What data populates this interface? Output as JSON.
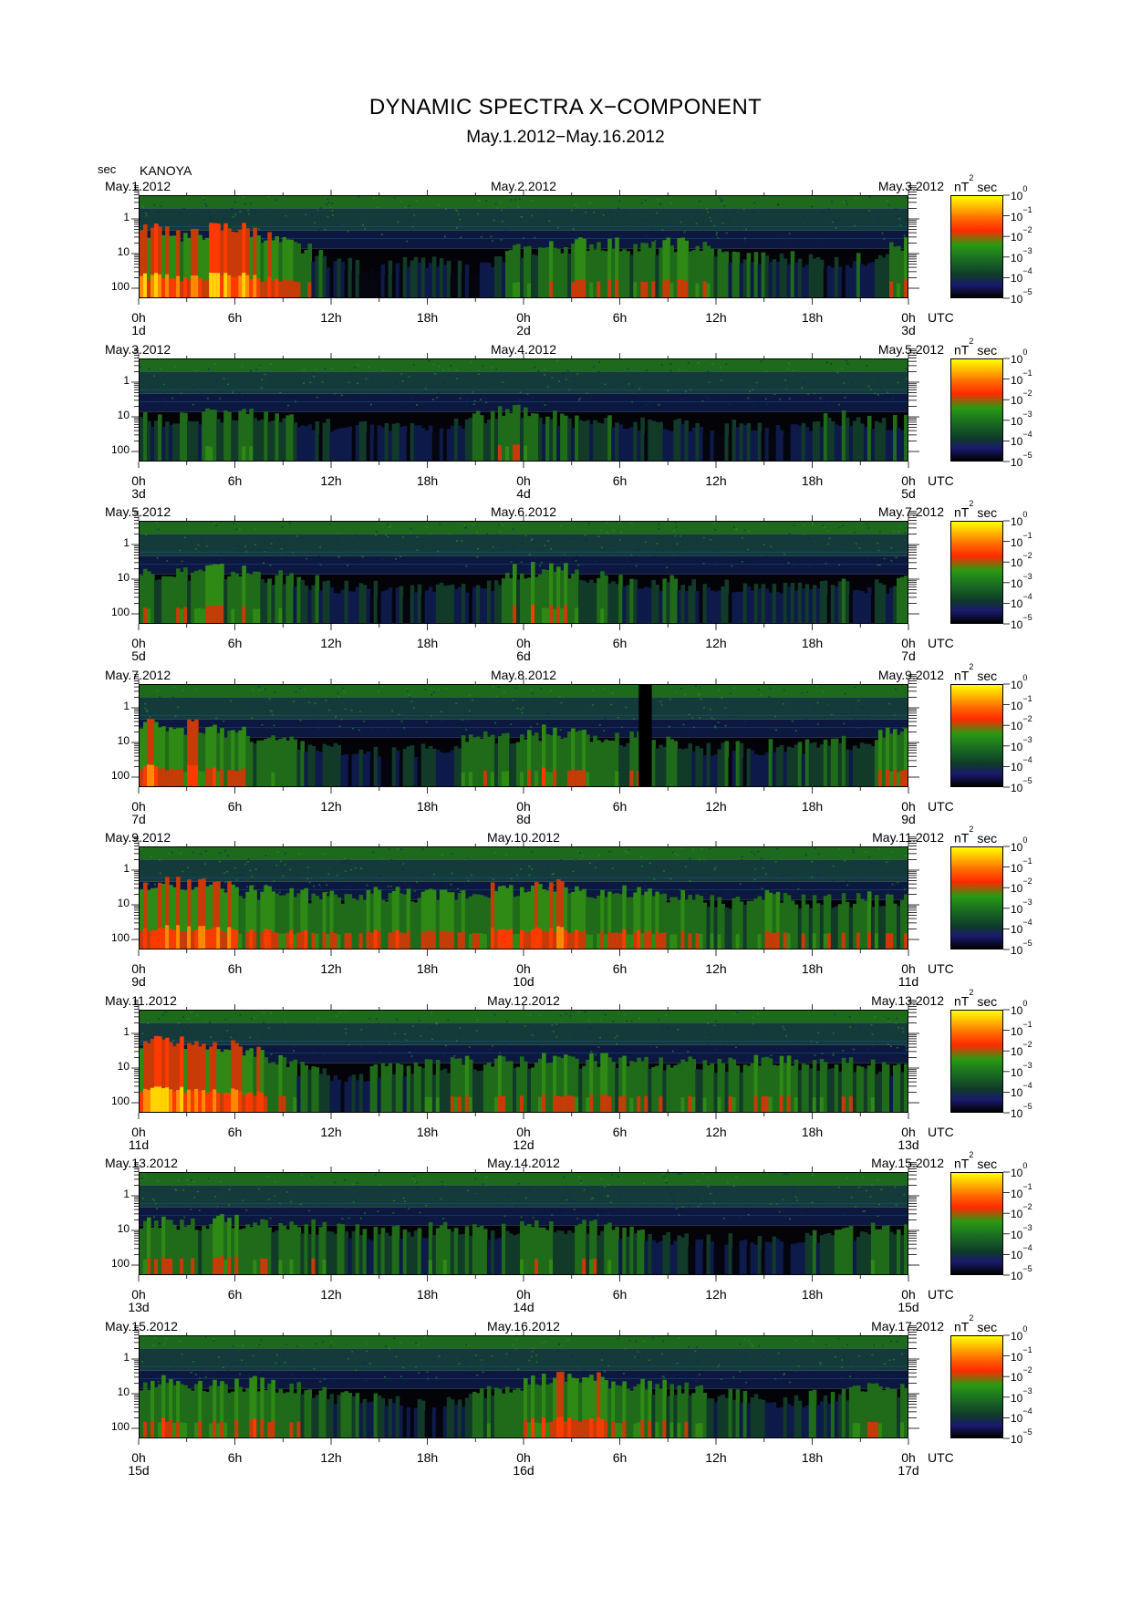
{
  "title": "DYNAMIC SPECTRA X−COMPONENT",
  "subtitle": "May.1.2012−May.16.2012",
  "y_unit": "sec",
  "station": "KANOYA",
  "colorbar": {
    "unit_base": "nT",
    "unit_exp": "2",
    "unit_tail": "sec",
    "base": "10",
    "exponents": [
      "0",
      "−1",
      "−2",
      "−3",
      "−4",
      "−5"
    ]
  },
  "time_zone": "UTC",
  "x_ticks": [
    "0h",
    "6h",
    "12h",
    "18h",
    "0h",
    "6h",
    "12h",
    "18h",
    "0h"
  ],
  "y_ticks": [
    "1",
    "10",
    "100"
  ],
  "chart_data": {
    "type": "heatmap",
    "title": "DYNAMIC SPECTRA X−COMPONENT",
    "subtitle": "May.1.2012−May.16.2012",
    "ylabel": "sec",
    "y_scale": "log",
    "y_ticks": [
      1,
      10,
      100
    ],
    "x_ticks": [
      "0h",
      "6h",
      "12h",
      "18h",
      "0h",
      "6h",
      "12h",
      "18h",
      "0h"
    ],
    "colorbar_range_log10": [
      -5,
      0
    ],
    "panels": [
      {
        "start": "May.1.2012",
        "mid": "May.2.2012",
        "end": "May.3.2012",
        "days": [
          "1d",
          "2d",
          "3d"
        ],
        "activity": [
          0.8,
          0.9,
          0.7,
          0.85,
          0.9,
          0.8,
          0.6,
          0.5,
          0.3,
          0.2,
          0.15,
          0.2,
          0.25,
          0.2,
          0.15,
          0.2,
          0.45,
          0.5,
          0.55,
          0.6,
          0.6,
          0.55,
          0.5,
          0.6,
          0.55,
          0.4,
          0.35,
          0.3,
          0.35,
          0.3,
          0.25,
          0.3,
          0.5,
          0.6
        ]
      },
      {
        "start": "May.3.2012",
        "mid": "May.4.2012",
        "end": "May.5.2012",
        "days": [
          "3d",
          "4d",
          "5d"
        ],
        "activity": [
          0.4,
          0.35,
          0.4,
          0.45,
          0.4,
          0.5,
          0.4,
          0.3,
          0.25,
          0.2,
          0.2,
          0.25,
          0.2,
          0.25,
          0.35,
          0.45,
          0.5,
          0.45,
          0.4,
          0.35,
          0.3,
          0.3,
          0.25,
          0.25,
          0.2,
          0.2,
          0.25,
          0.2,
          0.2,
          0.3,
          0.4,
          0.35,
          0.3,
          0.35
        ]
      },
      {
        "start": "May.5.2012",
        "mid": "May.6.2012",
        "end": "May.7.2012",
        "days": [
          "5d",
          "6d",
          "7d"
        ],
        "activity": [
          0.5,
          0.55,
          0.5,
          0.6,
          0.55,
          0.5,
          0.45,
          0.4,
          0.3,
          0.25,
          0.25,
          0.2,
          0.2,
          0.25,
          0.2,
          0.3,
          0.55,
          0.6,
          0.6,
          0.5,
          0.45,
          0.4,
          0.35,
          0.35,
          0.3,
          0.3,
          0.25,
          0.3,
          0.3,
          0.25,
          0.3,
          0.25,
          0.3,
          0.4
        ]
      },
      {
        "start": "May.7.2012",
        "mid": "May.8.2012",
        "end": "May.9.2012",
        "days": [
          "7d",
          "8d",
          "9d"
        ],
        "activity": [
          0.7,
          0.75,
          0.7,
          0.65,
          0.6,
          0.5,
          0.45,
          0.4,
          0.3,
          0.25,
          0.2,
          0.2,
          0.25,
          0.3,
          0.5,
          0.55,
          0.55,
          0.6,
          0.6,
          0.55,
          0.5,
          0.5,
          0.45,
          0.4,
          0.35,
          0.3,
          0.3,
          0.35,
          0.3,
          0.35,
          0.4,
          0.45,
          0.55,
          0.6
        ]
      },
      {
        "start": "May.9.2012",
        "mid": "May.10.2012",
        "end": "May.11.2012",
        "days": [
          "9d",
          "10d",
          "11d"
        ],
        "activity": [
          0.75,
          0.8,
          0.8,
          0.75,
          0.7,
          0.65,
          0.65,
          0.6,
          0.55,
          0.55,
          0.6,
          0.65,
          0.6,
          0.6,
          0.65,
          0.7,
          0.7,
          0.7,
          0.75,
          0.7,
          0.65,
          0.65,
          0.6,
          0.55,
          0.5,
          0.5,
          0.5,
          0.55,
          0.5,
          0.5,
          0.5,
          0.55,
          0.5,
          0.55
        ]
      },
      {
        "start": "May.11.2012",
        "mid": "May.12.2012",
        "end": "May.13.2012",
        "days": [
          "11d",
          "12d",
          "13d"
        ],
        "activity": [
          0.85,
          0.9,
          0.85,
          0.8,
          0.8,
          0.75,
          0.5,
          0.4,
          0.3,
          0.3,
          0.35,
          0.4,
          0.45,
          0.45,
          0.5,
          0.5,
          0.55,
          0.55,
          0.6,
          0.55,
          0.55,
          0.55,
          0.5,
          0.5,
          0.5,
          0.45,
          0.5,
          0.55,
          0.5,
          0.45,
          0.5,
          0.45,
          0.4,
          0.45
        ]
      },
      {
        "start": "May.13.2012",
        "mid": "May.14.2012",
        "end": "May.15.2012",
        "days": [
          "13d",
          "14d",
          "15d"
        ],
        "activity": [
          0.55,
          0.6,
          0.55,
          0.55,
          0.6,
          0.55,
          0.5,
          0.5,
          0.45,
          0.4,
          0.35,
          0.4,
          0.4,
          0.45,
          0.4,
          0.35,
          0.45,
          0.5,
          0.5,
          0.5,
          0.45,
          0.4,
          0.35,
          0.3,
          0.25,
          0.25,
          0.2,
          0.2,
          0.25,
          0.3,
          0.35,
          0.4,
          0.45,
          0.5
        ]
      },
      {
        "start": "May.15.2012",
        "mid": "May.16.2012",
        "end": "May.17.2012",
        "days": [
          "15d",
          "16d",
          "17d"
        ],
        "activity": [
          0.6,
          0.65,
          0.6,
          0.6,
          0.55,
          0.6,
          0.55,
          0.5,
          0.4,
          0.35,
          0.3,
          0.25,
          0.2,
          0.2,
          0.3,
          0.5,
          0.6,
          0.65,
          0.7,
          0.7,
          0.65,
          0.6,
          0.55,
          0.5,
          0.45,
          0.4,
          0.35,
          0.3,
          0.3,
          0.35,
          0.4,
          0.45,
          0.5,
          0.5
        ]
      }
    ]
  }
}
